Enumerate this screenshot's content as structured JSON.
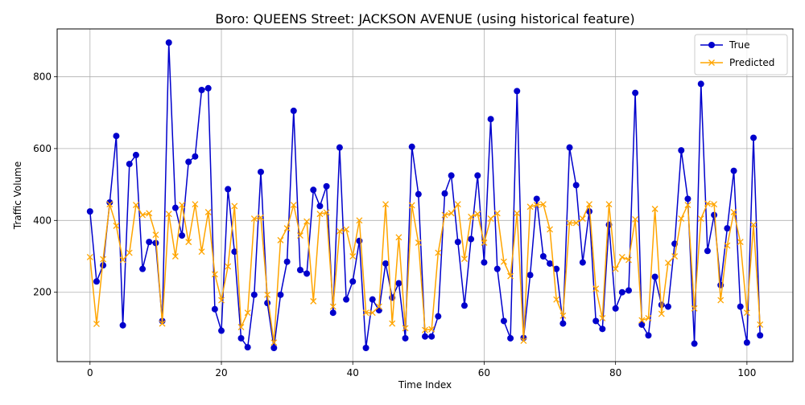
{
  "chart_data": {
    "type": "line",
    "title": "Boro: QUEENS Street: JACKSON AVENUE (using historical feature)",
    "xlabel": "Time Index",
    "ylabel": "Traffic Volume",
    "xlim": [
      -5,
      107
    ],
    "ylim": [
      7,
      933
    ],
    "xticks": [
      0,
      20,
      40,
      60,
      80,
      100
    ],
    "yticks": [
      200,
      400,
      600,
      800
    ],
    "grid": true,
    "legend": "top-right",
    "series": [
      {
        "name": "True",
        "color": "#0000cc",
        "marker": "circle",
        "values": [
          425,
          230,
          275,
          450,
          635,
          108,
          557,
          582,
          265,
          340,
          337,
          120,
          895,
          435,
          358,
          563,
          578,
          763,
          768,
          153,
          93,
          487,
          313,
          72,
          47,
          193,
          535,
          170,
          45,
          193,
          285,
          705,
          262,
          252,
          485,
          440,
          495,
          143,
          603,
          180,
          230,
          343,
          45,
          180,
          150,
          280,
          185,
          225,
          72,
          605,
          473,
          77,
          77,
          133,
          475,
          525,
          340,
          163,
          348,
          525,
          283,
          682,
          265,
          120,
          72,
          760,
          73,
          248,
          460,
          300,
          280,
          265,
          113,
          603,
          498,
          283,
          425,
          120,
          98,
          388,
          155,
          200,
          205,
          755,
          110,
          80,
          243,
          165,
          160,
          335,
          595,
          460,
          57,
          780,
          315,
          415,
          220,
          378,
          538,
          160,
          60,
          630,
          80
        ]
      },
      {
        "name": "Predicted",
        "color": "#ffa500",
        "marker": "x",
        "values": [
          298,
          112,
          292,
          445,
          385,
          290,
          310,
          443,
          415,
          420,
          360,
          113,
          418,
          300,
          443,
          340,
          445,
          313,
          423,
          250,
          178,
          272,
          440,
          103,
          143,
          405,
          408,
          193,
          60,
          345,
          378,
          443,
          358,
          397,
          175,
          418,
          422,
          160,
          370,
          375,
          300,
          400,
          143,
          143,
          160,
          445,
          113,
          353,
          100,
          442,
          338,
          95,
          97,
          310,
          415,
          420,
          445,
          293,
          410,
          418,
          338,
          405,
          420,
          285,
          245,
          420,
          65,
          438,
          443,
          445,
          375,
          180,
          135,
          393,
          393,
          405,
          445,
          210,
          128,
          445,
          265,
          298,
          290,
          403,
          122,
          128,
          432,
          140,
          282,
          300,
          405,
          443,
          155,
          405,
          447,
          445,
          178,
          330,
          423,
          340,
          143,
          388,
          110
        ]
      }
    ]
  }
}
